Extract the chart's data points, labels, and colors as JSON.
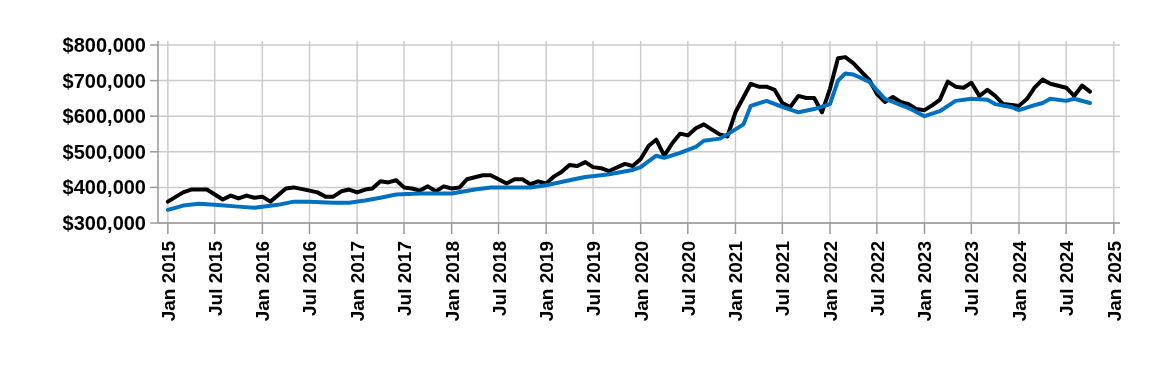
{
  "chart_data": {
    "type": "line",
    "xlim": [
      "2014-11-24",
      "2025-01-25"
    ],
    "ylim": [
      300000,
      800000
    ],
    "xticks": [
      {
        "value": "2015-01",
        "label": "Jan 2015"
      },
      {
        "value": "2015-07",
        "label": "Jul 2015"
      },
      {
        "value": "2016-01",
        "label": "Jan 2016"
      },
      {
        "value": "2016-07",
        "label": "Jul 2016"
      },
      {
        "value": "2017-01",
        "label": "Jan 2017"
      },
      {
        "value": "2017-07",
        "label": "Jul 2017"
      },
      {
        "value": "2018-01",
        "label": "Jan 2018"
      },
      {
        "value": "2018-07",
        "label": "Jul 2018"
      },
      {
        "value": "2019-01",
        "label": "Jan 2019"
      },
      {
        "value": "2019-07",
        "label": "Jul 2019"
      },
      {
        "value": "2020-01",
        "label": "Jan 2020"
      },
      {
        "value": "2020-07",
        "label": "Jul 2020"
      },
      {
        "value": "2021-01",
        "label": "Jan 2021"
      },
      {
        "value": "2021-07",
        "label": "Jul 2021"
      },
      {
        "value": "2022-01",
        "label": "Jan 2022"
      },
      {
        "value": "2022-07",
        "label": "Jul 2022"
      },
      {
        "value": "2023-01",
        "label": "Jan 2023"
      },
      {
        "value": "2023-07",
        "label": "Jul 2023"
      },
      {
        "value": "2024-01",
        "label": "Jan 2024"
      },
      {
        "value": "2024-07",
        "label": "Jul 2024"
      },
      {
        "value": "2025-01",
        "label": "Jan 2025"
      }
    ],
    "yticks": [
      {
        "value": 300000,
        "label": "$300,000"
      },
      {
        "value": 400000,
        "label": "$400,000"
      },
      {
        "value": 500000,
        "label": "$500,000"
      },
      {
        "value": 600000,
        "label": "$600,000"
      },
      {
        "value": 700000,
        "label": "$700,000"
      },
      {
        "value": 800000,
        "label": "$800,000"
      }
    ],
    "grid": true,
    "marker": "none",
    "line_style": "solid",
    "series": [
      {
        "color": "#000000",
        "x": [
          "2015-01",
          "2015-03",
          "2015-04",
          "2015-06",
          "2015-08",
          "2015-09",
          "2015-10",
          "2015-11",
          "2015-12",
          "2016-01",
          "2016-02",
          "2016-04",
          "2016-05",
          "2016-07",
          "2016-08",
          "2016-09",
          "2016-10",
          "2016-11",
          "2016-12",
          "2017-01",
          "2017-02",
          "2017-03",
          "2017-04",
          "2017-05",
          "2017-06",
          "2017-07",
          "2017-08",
          "2017-09",
          "2017-10",
          "2017-11",
          "2017-12",
          "2018-01",
          "2018-02",
          "2018-03",
          "2018-05",
          "2018-06",
          "2018-07",
          "2018-08",
          "2018-09",
          "2018-10",
          "2018-11",
          "2018-12",
          "2019-01",
          "2019-02",
          "2019-03",
          "2019-04",
          "2019-05",
          "2019-06",
          "2019-07",
          "2019-08",
          "2019-09",
          "2019-11",
          "2019-12",
          "2020-01",
          "2020-02",
          "2020-03",
          "2020-04",
          "2020-05",
          "2020-06",
          "2020-07",
          "2020-08",
          "2020-09",
          "2020-10",
          "2020-11",
          "2020-12",
          "2021-01",
          "2021-03",
          "2021-04",
          "2021-05",
          "2021-06",
          "2021-07",
          "2021-08",
          "2021-09",
          "2021-10",
          "2021-11",
          "2021-12",
          "2022-01",
          "2022-02",
          "2022-03",
          "2022-04",
          "2022-05",
          "2022-06",
          "2022-07",
          "2022-08",
          "2022-09",
          "2022-10",
          "2022-11",
          "2022-12",
          "2023-01",
          "2023-02",
          "2023-03",
          "2023-04",
          "2023-05",
          "2023-06",
          "2023-07",
          "2023-08",
          "2023-09",
          "2023-10",
          "2023-11",
          "2024-01",
          "2024-02",
          "2024-03",
          "2024-04",
          "2024-05",
          "2024-07",
          "2024-08",
          "2024-09",
          "2024-10"
        ],
        "values": [
          360000,
          386000,
          394000,
          394000,
          366000,
          377000,
          369000,
          377000,
          371000,
          374000,
          360000,
          397000,
          400000,
          391000,
          386000,
          374000,
          374000,
          389000,
          394000,
          386000,
          394000,
          397000,
          417000,
          414000,
          420000,
          400000,
          397000,
          391000,
          403000,
          389000,
          403000,
          397000,
          400000,
          423000,
          434000,
          434000,
          423000,
          411000,
          423000,
          423000,
          409000,
          417000,
          411000,
          431000,
          443000,
          463000,
          460000,
          471000,
          457000,
          454000,
          446000,
          466000,
          460000,
          480000,
          517000,
          534000,
          489000,
          523000,
          551000,
          546000,
          566000,
          577000,
          563000,
          549000,
          543000,
          611000,
          691000,
          683000,
          683000,
          674000,
          637000,
          626000,
          657000,
          651000,
          651000,
          611000,
          677000,
          763000,
          766000,
          749000,
          726000,
          703000,
          663000,
          640000,
          654000,
          640000,
          634000,
          620000,
          617000,
          631000,
          646000,
          697000,
          683000,
          680000,
          694000,
          657000,
          674000,
          657000,
          634000,
          629000,
          649000,
          680000,
          703000,
          691000,
          680000,
          657000,
          686000,
          669000
        ]
      },
      {
        "color": "#0070c0",
        "x": [
          "2015-01",
          "2015-03",
          "2015-05",
          "2015-07",
          "2015-10",
          "2015-12",
          "2016-03",
          "2016-05",
          "2016-07",
          "2016-10",
          "2016-12",
          "2017-02",
          "2017-04",
          "2017-06",
          "2017-09",
          "2018-01",
          "2018-04",
          "2018-06",
          "2018-08",
          "2018-11",
          "2019-01",
          "2019-04",
          "2019-06",
          "2019-08",
          "2019-09",
          "2019-12",
          "2020-01",
          "2020-03",
          "2020-04",
          "2020-06",
          "2020-08",
          "2020-09",
          "2020-11",
          "2020-12",
          "2021-02",
          "2021-03",
          "2021-05",
          "2021-07",
          "2021-09",
          "2021-11",
          "2022-01",
          "2022-02",
          "2022-03",
          "2022-04",
          "2022-06",
          "2022-08",
          "2022-11",
          "2023-01",
          "2023-03",
          "2023-05",
          "2023-07",
          "2023-09",
          "2023-10",
          "2023-12",
          "2024-01",
          "2024-03",
          "2024-04",
          "2024-05",
          "2024-07",
          "2024-08",
          "2024-10"
        ],
        "values": [
          337000,
          349000,
          354000,
          351000,
          346000,
          343000,
          351000,
          360000,
          360000,
          357000,
          357000,
          363000,
          371000,
          380000,
          383000,
          383000,
          394000,
          400000,
          400000,
          400000,
          406000,
          420000,
          429000,
          434000,
          437000,
          449000,
          457000,
          489000,
          483000,
          497000,
          514000,
          531000,
          537000,
          549000,
          577000,
          629000,
          643000,
          626000,
          611000,
          620000,
          634000,
          700000,
          720000,
          717000,
          697000,
          649000,
          623000,
          600000,
          614000,
          643000,
          649000,
          646000,
          634000,
          626000,
          617000,
          631000,
          637000,
          649000,
          643000,
          649000,
          637000
        ]
      }
    ]
  }
}
